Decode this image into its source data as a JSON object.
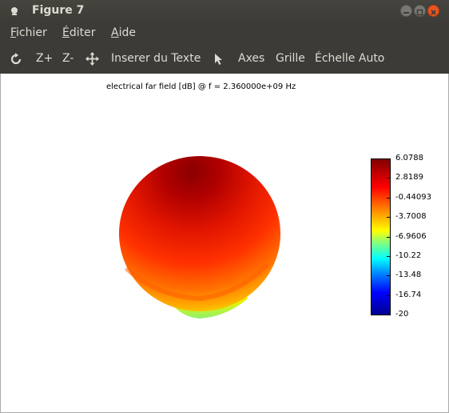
{
  "window": {
    "title": "Figure 7"
  },
  "menu": {
    "items": [
      {
        "underline": "F",
        "rest": "ichier"
      },
      {
        "underline": "É",
        "rest": "diter"
      },
      {
        "underline": "A",
        "rest": "ide"
      }
    ]
  },
  "toolbar": {
    "zoom_in": "Z+",
    "zoom_out": "Z-",
    "insert_text": "Inserer du Texte",
    "axes": "Axes",
    "grid": "Grille",
    "auto_scale": "Échelle Auto"
  },
  "plot": {
    "title": "electrical far field [dB] @ f = 2.360000e+09 Hz"
  },
  "colorbar": {
    "labels": [
      "6.0788",
      "2.8189",
      "-0.44093",
      "-3.7008",
      "-6.9606",
      "-10.22",
      "-13.48",
      "-16.74",
      "-20"
    ]
  },
  "colors": {
    "titlebar": "#3c3b37",
    "close": "#e9541f",
    "text": "#dfdbd2"
  }
}
